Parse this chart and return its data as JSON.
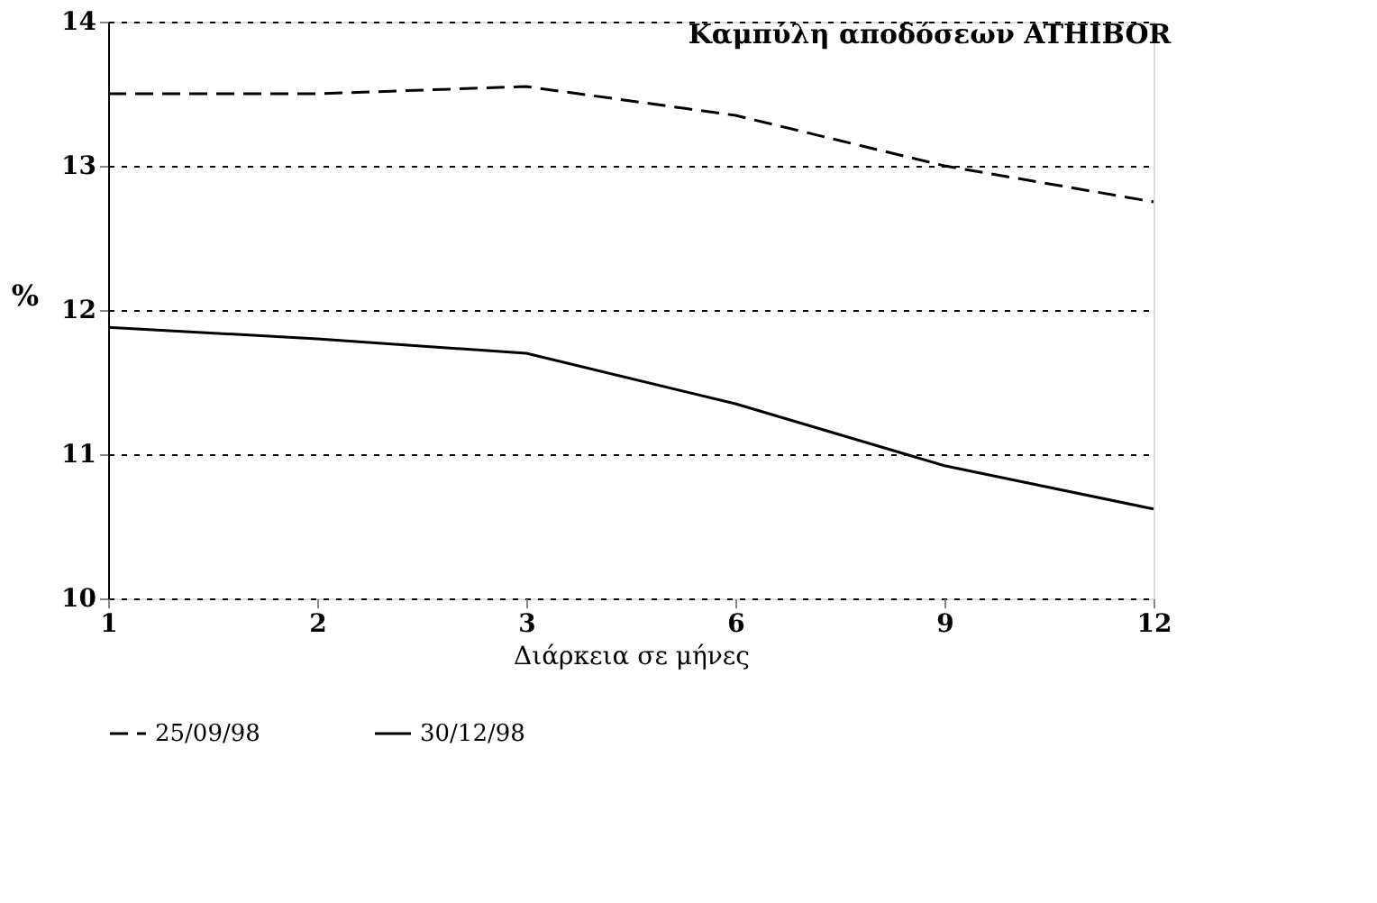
{
  "chart_data": {
    "type": "line",
    "title": "Καμπύλη αποδόσεων ATHIBOR",
    "xlabel": "Διάρκεια σε μήνες",
    "ylabel": "%",
    "categories": [
      "1",
      "2",
      "3",
      "6",
      "9",
      "12"
    ],
    "ylim": [
      10,
      14
    ],
    "yticks": [
      10,
      11,
      12,
      13,
      14
    ],
    "grid": "y",
    "legend": "bottom",
    "marker": "none",
    "series": [
      {
        "name": "25/09/98",
        "color": "#000000",
        "line_style": "dashed",
        "values": [
          13.5,
          13.5,
          13.55,
          13.35,
          13.0,
          12.75
        ]
      },
      {
        "name": "30/12/98",
        "color": "#000000",
        "line_style": "solid",
        "values": [
          11.88,
          11.8,
          11.7,
          11.35,
          10.92,
          10.62
        ]
      }
    ]
  }
}
